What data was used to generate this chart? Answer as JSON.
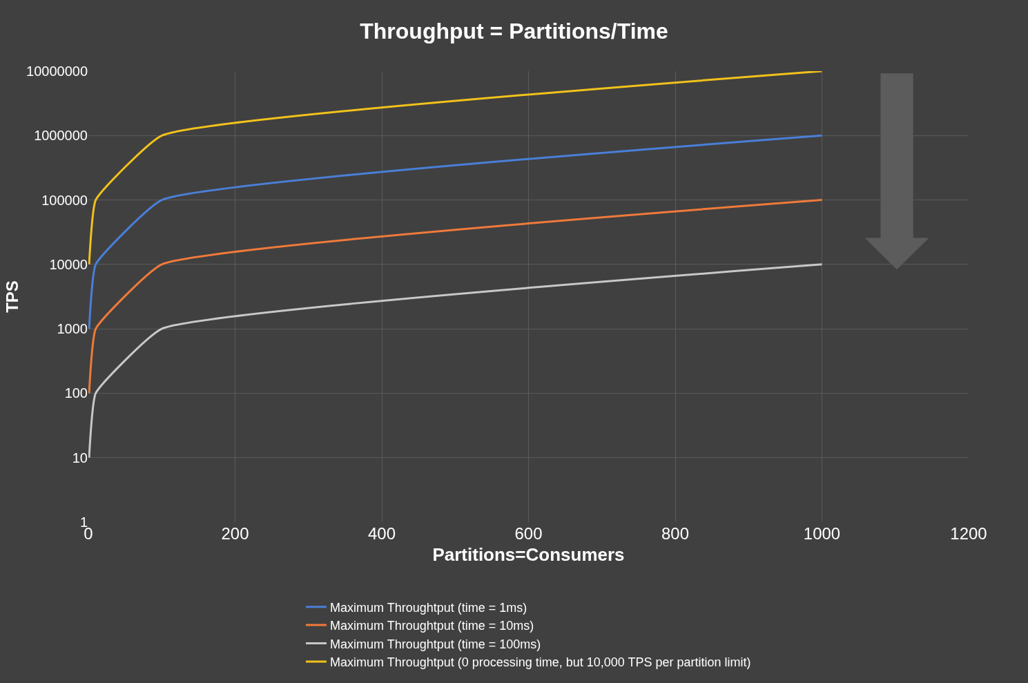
{
  "chart_data": {
    "type": "line",
    "title": "Throughput = Partitions/Time",
    "xlabel": "Partitions=Consumers",
    "ylabel": "TPS",
    "x": [
      1,
      10,
      100,
      1000
    ],
    "series": [
      {
        "name": "Maximum Throughtput (time = 1ms)",
        "color": "#4a7fd8",
        "values": [
          1000,
          10000,
          100000,
          1000000
        ]
      },
      {
        "name": "Maximum Throughtput (time = 10ms)",
        "color": "#f07a3a",
        "values": [
          100,
          1000,
          10000,
          100000
        ]
      },
      {
        "name": "Maximum Throughtput (time = 100ms)",
        "color": "#c8c8c8",
        "values": [
          10,
          100,
          1000,
          10000
        ]
      },
      {
        "name": "Maximum Throughtput (0 processing time, but 10,000 TPS per partition limit)",
        "color": "#f2c21b",
        "values": [
          10000,
          100000,
          1000000,
          10000000
        ]
      }
    ],
    "xlim": [
      0,
      1200
    ],
    "xticks": [
      0,
      200,
      400,
      600,
      800,
      1000,
      1200
    ],
    "ylim": [
      1,
      10000000
    ],
    "yticks": [
      1,
      10,
      100,
      1000,
      10000,
      100000,
      1000000,
      10000000
    ],
    "log": "y",
    "grid": true,
    "legend": "bottom",
    "marker": "none",
    "line_style": "solid"
  }
}
